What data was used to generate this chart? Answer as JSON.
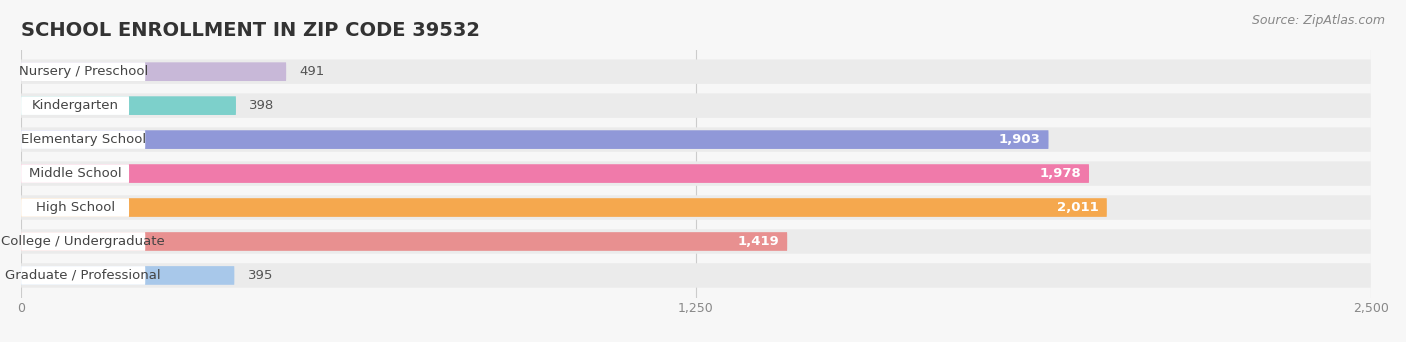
{
  "title": "SCHOOL ENROLLMENT IN ZIP CODE 39532",
  "source": "Source: ZipAtlas.com",
  "categories": [
    "Nursery / Preschool",
    "Kindergarten",
    "Elementary School",
    "Middle School",
    "High School",
    "College / Undergraduate",
    "Graduate / Professional"
  ],
  "values": [
    491,
    398,
    1903,
    1978,
    2011,
    1419,
    395
  ],
  "bar_colors": [
    "#c8b8d8",
    "#7dd0cb",
    "#9098d8",
    "#f07aaa",
    "#f5a84e",
    "#e89090",
    "#a8c8ea"
  ],
  "bar_bg_color": "#ebebeb",
  "background_color": "#f7f7f7",
  "xlim": [
    0,
    2500
  ],
  "xticks": [
    0,
    1250,
    2500
  ],
  "title_fontsize": 14,
  "label_fontsize": 9.5,
  "value_fontsize": 9.5,
  "source_fontsize": 9
}
